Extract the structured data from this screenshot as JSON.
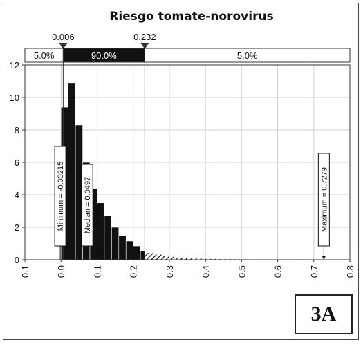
{
  "chart_data": {
    "type": "bar",
    "title": "Riesgo tomate-norovirus",
    "xlabel": "",
    "ylabel": "",
    "xlim": [
      -0.1,
      0.8
    ],
    "ylim": [
      0,
      12
    ],
    "x_ticks": [
      "-0.1",
      "0.0",
      "0.1",
      "0.2",
      "0.3",
      "0.4",
      "0.5",
      "0.6",
      "0.7",
      "0.8"
    ],
    "y_ticks": [
      "0",
      "2",
      "4",
      "6",
      "8",
      "10",
      "12"
    ],
    "grid": true,
    "bin_width": 0.02,
    "bins": [
      {
        "x0": 0.0,
        "x1": 0.02,
        "density": 9.4
      },
      {
        "x0": 0.02,
        "x1": 0.04,
        "density": 10.9
      },
      {
        "x0": 0.04,
        "x1": 0.06,
        "density": 8.3
      },
      {
        "x0": 0.06,
        "x1": 0.08,
        "density": 6.0
      },
      {
        "x0": 0.08,
        "x1": 0.1,
        "density": 4.4
      },
      {
        "x0": 0.1,
        "x1": 0.12,
        "density": 3.5
      },
      {
        "x0": 0.12,
        "x1": 0.14,
        "density": 2.7
      },
      {
        "x0": 0.14,
        "x1": 0.16,
        "density": 2.0
      },
      {
        "x0": 0.16,
        "x1": 0.18,
        "density": 1.5
      },
      {
        "x0": 0.18,
        "x1": 0.2,
        "density": 1.15
      },
      {
        "x0": 0.2,
        "x1": 0.22,
        "density": 0.85
      },
      {
        "x0": 0.22,
        "x1": 0.232,
        "density": 0.55
      },
      {
        "x0": 0.232,
        "x1": 0.26,
        "density": 0.42
      },
      {
        "x0": 0.26,
        "x1": 0.28,
        "density": 0.32
      },
      {
        "x0": 0.28,
        "x1": 0.3,
        "density": 0.24
      },
      {
        "x0": 0.3,
        "x1": 0.32,
        "density": 0.18
      },
      {
        "x0": 0.32,
        "x1": 0.34,
        "density": 0.14
      },
      {
        "x0": 0.34,
        "x1": 0.36,
        "density": 0.11
      },
      {
        "x0": 0.36,
        "x1": 0.38,
        "density": 0.09
      },
      {
        "x0": 0.38,
        "x1": 0.4,
        "density": 0.07
      },
      {
        "x0": 0.4,
        "x1": 0.44,
        "density": 0.05
      },
      {
        "x0": 0.44,
        "x1": 0.48,
        "density": 0.04
      },
      {
        "x0": 0.48,
        "x1": 0.52,
        "density": 0.03
      },
      {
        "x0": 0.52,
        "x1": 0.56,
        "density": 0.02
      },
      {
        "x0": 0.56,
        "x1": 0.6,
        "density": 0.015
      },
      {
        "x0": 0.6,
        "x1": 0.66,
        "density": 0.01
      },
      {
        "x0": 0.66,
        "x1": 0.73,
        "density": 0.008
      }
    ],
    "interval": {
      "lower": 0.006,
      "upper": 0.232,
      "lower_label": "0.006",
      "upper_label": "0.232",
      "left_pct": "5.0%",
      "middle_pct": "90.0%",
      "right_pct": "5.0%"
    },
    "stats": [
      {
        "label": "Minimum = -0.00215",
        "x": -0.00215
      },
      {
        "label": "Median = 0.0497",
        "x": 0.0497
      },
      {
        "label": "Maximum = 0.7279",
        "x": 0.7279
      }
    ],
    "panel_label": "3A",
    "colors": {
      "bars": "#111111",
      "tail_hatch": "#111111",
      "grid": "#d0d0d0",
      "band_dark": "#111111"
    }
  }
}
